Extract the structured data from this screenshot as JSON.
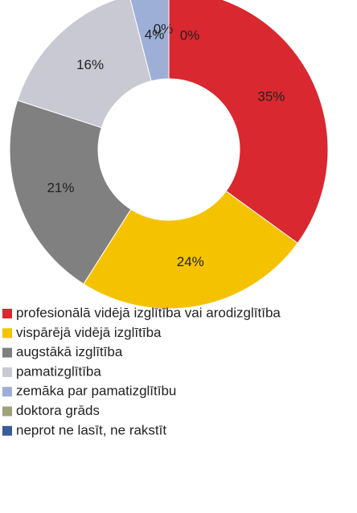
{
  "chart_data": {
    "type": "donut",
    "categories": [
      "profesionālā vidējā izglītība vai arodizglītība",
      "vispārējā vidējā izglītība",
      "augstākā izglītība",
      "pamatizglītība",
      "zemāka par pamatizglītību",
      "doktora grāds",
      "neprot ne lasīt, ne rakstīt"
    ],
    "values": [
      35,
      24,
      21,
      16,
      4,
      0,
      0
    ],
    "value_labels": [
      "35%",
      "24%",
      "21%",
      "16%",
      "4%",
      "0%",
      "0%"
    ],
    "colors": [
      "#d9282f",
      "#f5c200",
      "#808080",
      "#c9c9d3",
      "#9dafd6",
      "#a0a07a",
      "#3a5a9a"
    ],
    "legend": "bottom"
  }
}
